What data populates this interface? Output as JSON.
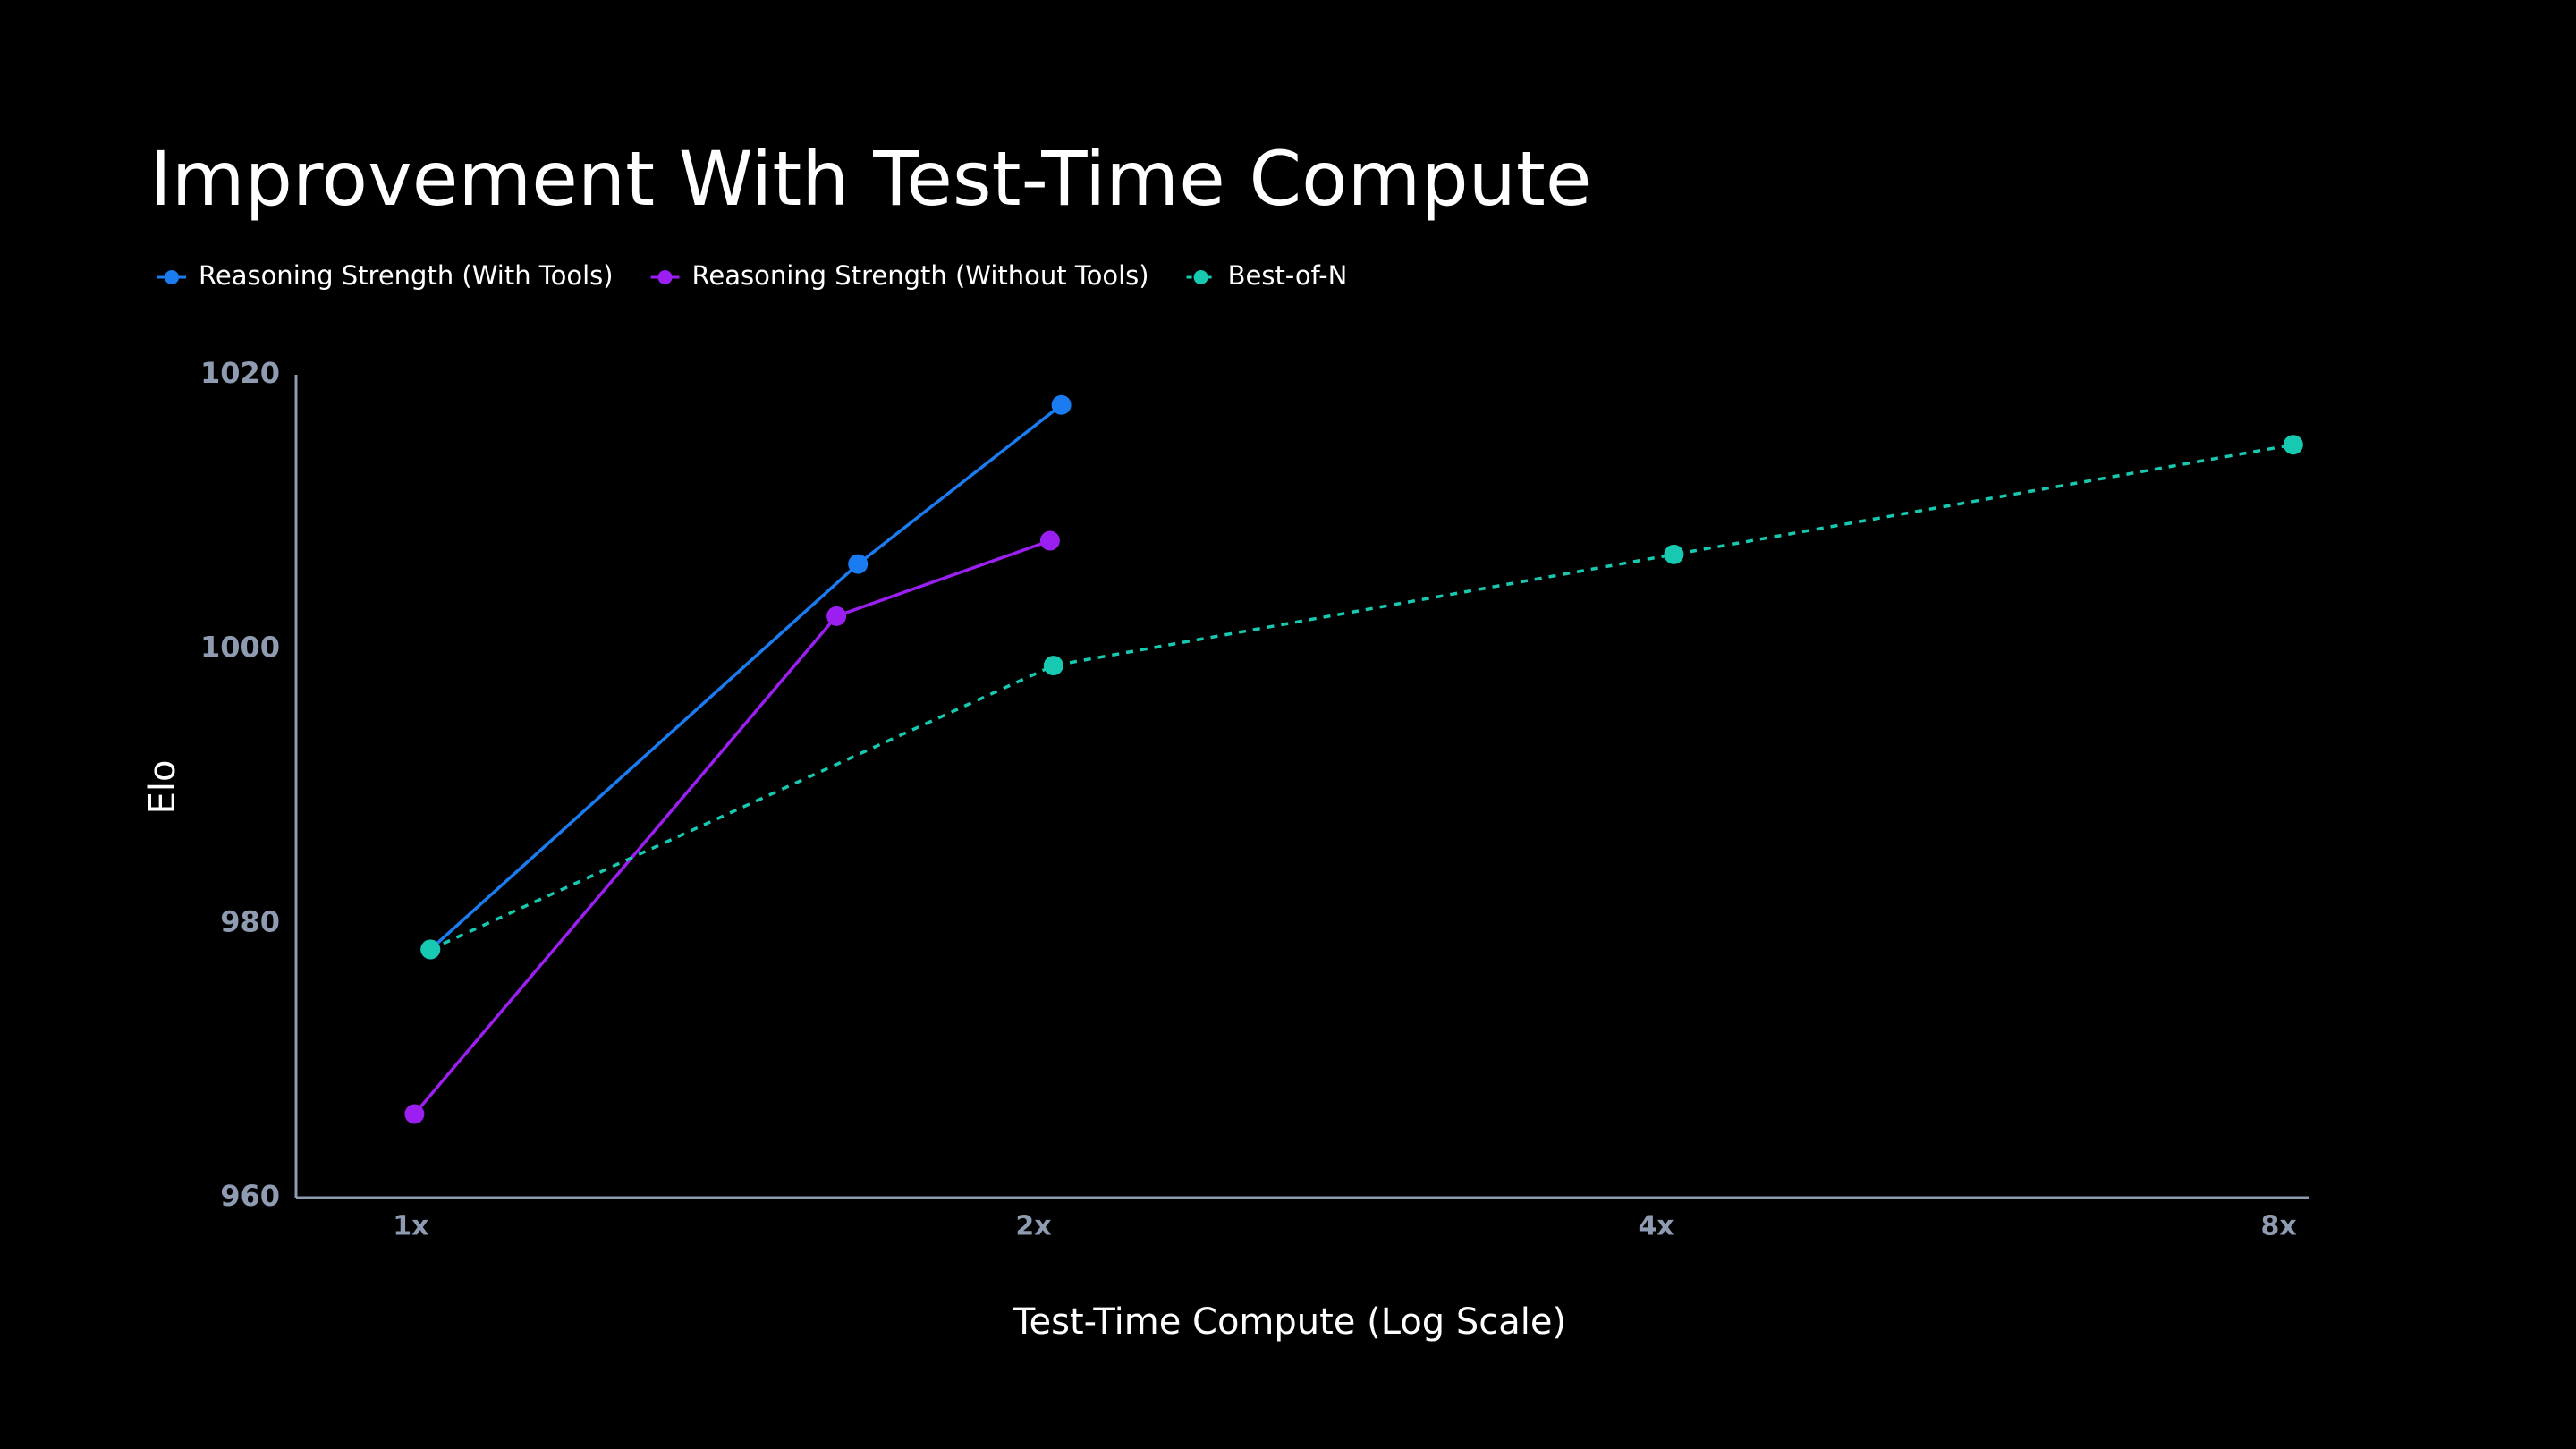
{
  "chart_data": {
    "type": "line",
    "title": "Improvement With Test-Time Compute",
    "x_label": "Test-Time Compute (Log Scale)",
    "y_label": "Elo",
    "x_scale": "log",
    "xlim": [
      0.88,
      8.27
    ],
    "xticks": [
      {
        "value": 1,
        "label": "1x"
      },
      {
        "value": 2,
        "label": "2x"
      },
      {
        "value": 4,
        "label": "4x"
      },
      {
        "value": 8,
        "label": "8x"
      }
    ],
    "ylim": [
      960,
      1020
    ],
    "yticks": [
      960,
      980,
      1000,
      1020
    ],
    "grid": false,
    "legend": "top-left",
    "series": [
      {
        "name": "Reasoning Strength (With Tools)",
        "color": "#1a7cf0",
        "line_style": "solid",
        "x": [
          1.022,
          1.645,
          2.063
        ],
        "values": [
          978.1,
          1006.2,
          1017.8
        ]
      },
      {
        "name": "Reasoning Strength (Without Tools)",
        "color": "#9b1ff0",
        "line_style": "solid",
        "x": [
          1.004,
          1.606,
          2.037
        ],
        "values": [
          966.1,
          1002.4,
          1007.9
        ]
      },
      {
        "name": "Best-of-N",
        "color": "#17c9b0",
        "line_style": "dashed",
        "x": [
          1.022,
          2.045,
          4.08,
          8.13
        ],
        "values": [
          978.1,
          998.8,
          1006.9,
          1014.9
        ]
      }
    ]
  }
}
